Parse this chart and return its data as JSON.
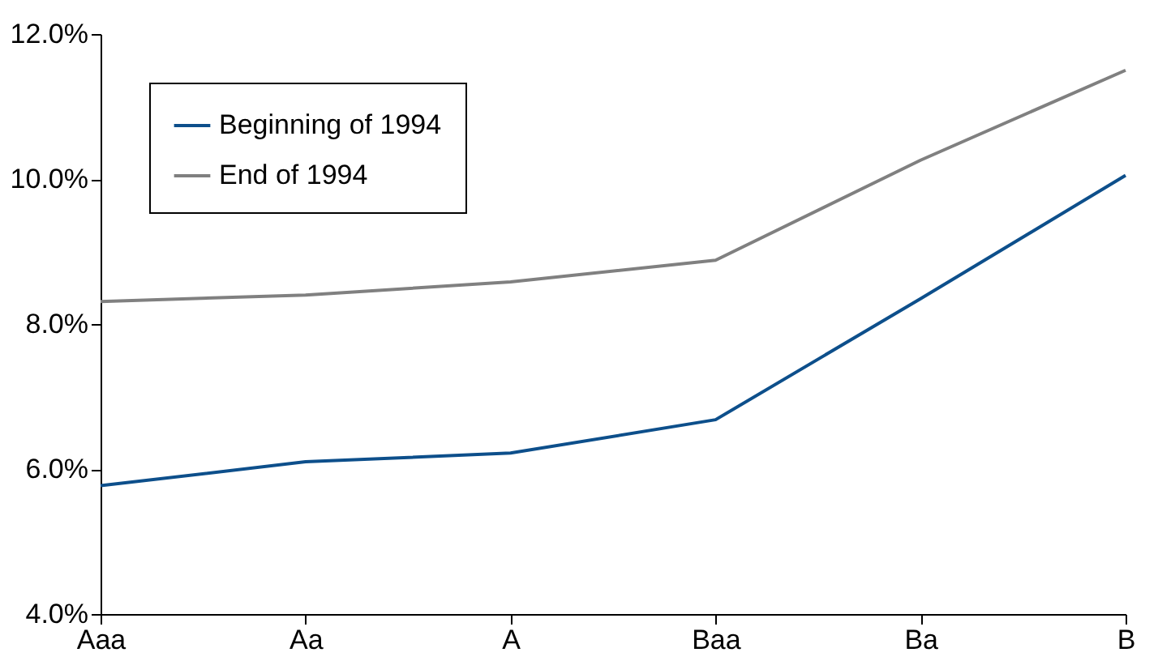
{
  "chart_data": {
    "type": "line",
    "categories": [
      "Aaa",
      "Aa",
      "A",
      "Baa",
      "Ba",
      "B"
    ],
    "series": [
      {
        "name": "Beginning of 1994",
        "color": "#0d4f8b",
        "values": [
          5.77,
          6.1,
          6.22,
          6.68,
          8.35,
          10.05
        ]
      },
      {
        "name": "End of 1994",
        "color": "#808080",
        "values": [
          8.31,
          8.4,
          8.58,
          8.88,
          10.26,
          11.5
        ]
      }
    ],
    "ylim": [
      4,
      12
    ],
    "yticks": [
      {
        "value": 4,
        "label": "4.0%"
      },
      {
        "value": 6,
        "label": "6.0%"
      },
      {
        "value": 8,
        "label": "8.0%"
      },
      {
        "value": 10,
        "label": "10.0%"
      },
      {
        "value": 12,
        "label": "12.0%"
      }
    ],
    "grid": false,
    "legend": "top left",
    "marker": "none",
    "line_style": "solid"
  }
}
